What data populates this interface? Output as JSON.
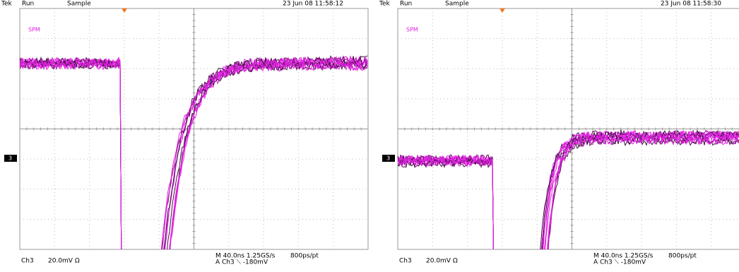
{
  "panels": [
    {
      "header": {
        "brand": "Tek",
        "state": "Run",
        "mode": "Sample",
        "datetime": "23 Jun 08 11:58:12"
      },
      "label": "SPM",
      "channel_marker": "3",
      "footer": {
        "channel": "Ch3",
        "scale": "20.0mV  Ω",
        "timebase": "M 40.0ns 1.25GS/s",
        "resolution": "800ps/pt",
        "trigger": "A  Ch3  ⟍  -180mV"
      }
    },
    {
      "header": {
        "brand": "Tek",
        "state": "Run",
        "mode": "Sample",
        "datetime": "23 Jun 08 11:58:30"
      },
      "label": "SPM",
      "channel_marker": "3",
      "footer": {
        "channel": "Ch3",
        "scale": "20.0mV  Ω",
        "timebase": "M 40.0ns 1.25GS/s",
        "resolution": "800ps/pt",
        "trigger": "A  Ch3  ⟍  -180mV"
      }
    }
  ]
}
